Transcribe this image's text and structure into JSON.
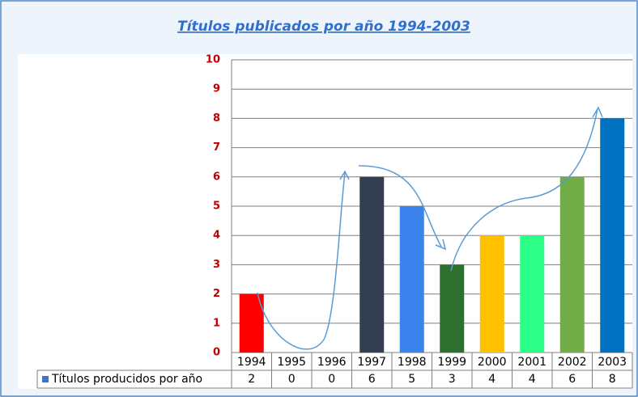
{
  "chart_data": {
    "type": "bar",
    "title": "Títulos publicados por año 1994-2003",
    "categories": [
      "1994",
      "1995",
      "1996",
      "1997",
      "1998",
      "1999",
      "2000",
      "2001",
      "2002",
      "2003"
    ],
    "series": [
      {
        "name": "Títulos producidos por año",
        "color": "#4472c4",
        "values": [
          2,
          0,
          0,
          6,
          5,
          3,
          4,
          4,
          6,
          8
        ],
        "colors": [
          "#ff0000",
          "#ff0000",
          "#ff0000",
          "#333f50",
          "#3b82ec",
          "#2e7030",
          "#ffc000",
          "#2bff88",
          "#70ad47",
          "#0070c0"
        ]
      }
    ],
    "ylim": [
      0,
      10
    ],
    "yticks": [
      0,
      1,
      2,
      3,
      4,
      5,
      6,
      7,
      8,
      9,
      10
    ],
    "grid": true
  }
}
